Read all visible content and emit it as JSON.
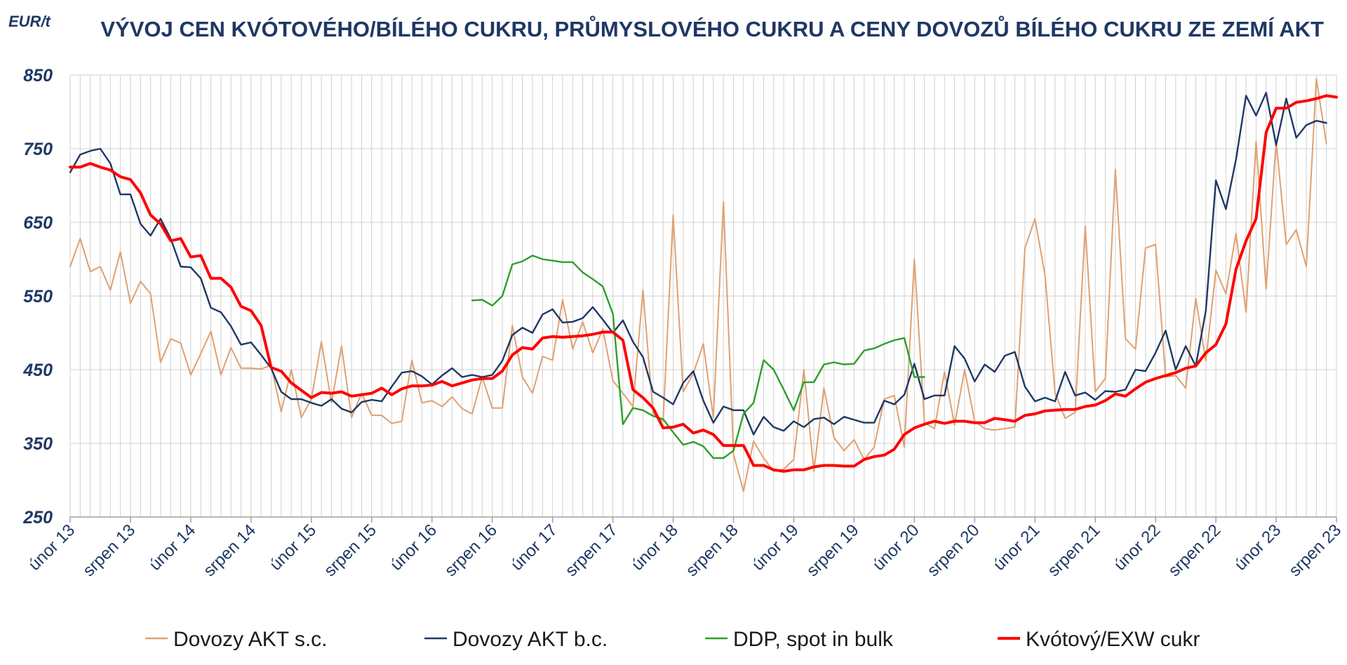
{
  "chart_data": {
    "type": "line",
    "title": "VÝVOJ CEN KVÓTOVÉHO/BÍLÉHO CUKRU, PRŮMYSLOVÉHO CUKRU A CENY DOVOZŮ BÍLÉHO CUKRU ZE ZEMÍ AKT",
    "ylabel": "EUR/t",
    "ylim": [
      250,
      850
    ],
    "yticks": [
      850,
      750,
      650,
      550,
      450,
      350,
      250
    ],
    "xlim": [
      0,
      126
    ],
    "x_tick_positions": [
      0,
      6,
      12,
      18,
      24,
      30,
      36,
      42,
      48,
      54,
      60,
      66,
      72,
      78,
      84,
      90,
      96,
      102,
      108,
      114,
      120,
      126
    ],
    "x_tick_labels": [
      "únor 13",
      "srpen 13",
      "únor 14",
      "srpen 14",
      "únor 15",
      "srpen 15",
      "únor 16",
      "srpen 16",
      "únor 17",
      "srpen 17",
      "únor 18",
      "srpen 18",
      "únor 19",
      "srpen 19",
      "únor 20",
      "srpen 20",
      "únor 21",
      "srpen 21",
      "únor 22",
      "srpen 22",
      "únor 23",
      "srpen 23"
    ],
    "grid": "vertical-monthly",
    "legend_position": "bottom",
    "series": [
      {
        "name": "Dovozy AKT s.c.",
        "color": "#e0a070",
        "width": 2,
        "start": 0,
        "values": [
          590,
          628,
          583,
          590,
          558,
          610,
          540,
          570,
          553,
          460,
          492,
          486,
          443,
          472,
          502,
          443,
          480,
          452,
          452,
          451,
          456,
          393,
          450,
          385,
          410,
          488,
          405,
          482,
          385,
          418,
          388,
          388,
          377,
          380,
          463,
          405,
          408,
          400,
          413,
          397,
          390,
          440,
          398,
          398,
          510,
          440,
          418,
          468,
          463,
          545,
          478,
          515,
          473,
          505,
          435,
          418,
          400,
          558,
          390,
          380,
          660,
          420,
          445,
          485,
          385,
          678,
          335,
          285,
          353,
          330,
          312,
          315,
          328,
          450,
          312,
          425,
          358,
          340,
          355,
          328,
          345,
          410,
          415,
          345,
          600,
          378,
          370,
          447,
          375,
          450,
          380,
          370,
          368,
          370,
          372,
          615,
          655,
          578,
          418,
          384,
          392,
          645,
          420,
          438,
          722,
          492,
          478,
          615,
          620,
          440,
          442,
          425,
          547,
          462,
          585,
          553,
          635,
          528,
          760,
          560,
          760,
          620,
          640,
          590,
          845,
          757
        ]
      },
      {
        "name": "Dovozy AKT b.c.",
        "color": "#1f3864",
        "width": 2.4,
        "start": 0,
        "values": [
          718,
          742,
          747,
          750,
          730,
          688,
          688,
          648,
          632,
          655,
          628,
          590,
          589,
          574,
          534,
          528,
          509,
          484,
          487,
          470,
          452,
          420,
          410,
          410,
          405,
          401,
          410,
          397,
          392,
          406,
          409,
          407,
          427,
          446,
          448,
          441,
          430,
          442,
          452,
          440,
          443,
          440,
          443,
          462,
          497,
          507,
          500,
          525,
          532,
          514,
          515,
          520,
          535,
          518,
          500,
          517,
          488,
          467,
          420,
          412,
          403,
          432,
          448,
          408,
          378,
          400,
          395,
          395,
          362,
          386,
          372,
          367,
          380,
          372,
          383,
          385,
          376,
          386,
          382,
          378,
          378,
          408,
          403,
          416,
          458,
          410,
          415,
          415,
          482,
          465,
          434,
          457,
          447,
          469,
          474,
          427,
          407,
          412,
          407,
          447,
          415,
          419,
          409,
          421,
          420,
          423,
          450,
          448,
          473,
          503,
          450,
          482,
          455,
          530,
          707,
          668,
          735,
          822,
          795,
          826,
          755,
          818,
          765,
          782,
          788,
          785
        ]
      },
      {
        "name": "DDP, spot in bulk",
        "color": "#2ca02c",
        "width": 2.4,
        "start": 40,
        "values": [
          544,
          545,
          537,
          550,
          593,
          597,
          605,
          600,
          598,
          596,
          596,
          582,
          573,
          563,
          526,
          376,
          398,
          395,
          387,
          383,
          365,
          348,
          352,
          346,
          330,
          330,
          340,
          390,
          405,
          463,
          450,
          423,
          395,
          433,
          433,
          457,
          460,
          457,
          458,
          476,
          479,
          485,
          490,
          493,
          440,
          440
        ]
      },
      {
        "name": "Kvótový/EXW cukr",
        "color": "#ff0000",
        "width": 4,
        "start": 0,
        "values": [
          725,
          725,
          730,
          725,
          721,
          712,
          708,
          690,
          660,
          648,
          625,
          628,
          603,
          605,
          574,
          574,
          562,
          536,
          530,
          510,
          453,
          448,
          432,
          422,
          412,
          419,
          418,
          420,
          414,
          416,
          418,
          425,
          416,
          424,
          428,
          428,
          429,
          434,
          428,
          432,
          436,
          438,
          438,
          448,
          470,
          480,
          478,
          493,
          495,
          494,
          495,
          496,
          498,
          501,
          501,
          490,
          423,
          412,
          398,
          371,
          372,
          376,
          364,
          368,
          362,
          347,
          347,
          347,
          320,
          320,
          314,
          312,
          314,
          314,
          318,
          320,
          320,
          319,
          319,
          328,
          332,
          334,
          342,
          362,
          371,
          376,
          380,
          377,
          380,
          380,
          378,
          378,
          384,
          382,
          380,
          388,
          390,
          394,
          395,
          396,
          396,
          400,
          402,
          408,
          417,
          414,
          424,
          433,
          438,
          442,
          446,
          452,
          455,
          473,
          484,
          512,
          586,
          625,
          655,
          772,
          805,
          805,
          813,
          815,
          818,
          822,
          820
        ]
      }
    ]
  }
}
